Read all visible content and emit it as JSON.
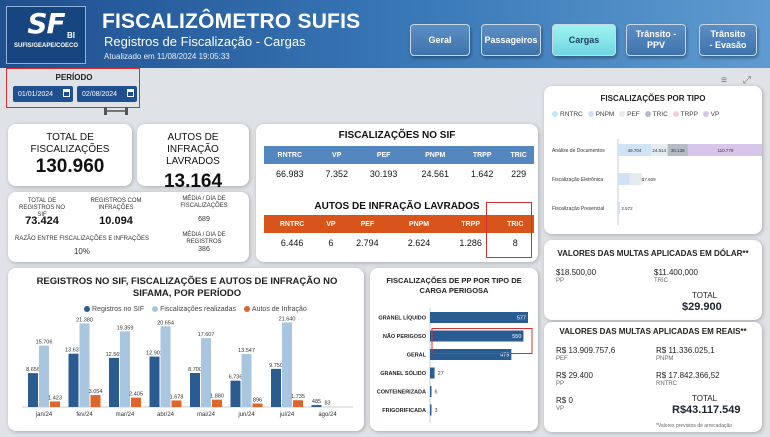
{
  "header": {
    "logo_text": "SF",
    "logo_bi": "BI",
    "logo_sub": "SUFIS/GEAPE/COECO",
    "title": "FISCALIZÔMETRO SUFIS",
    "subtitle": "Registros de Fiscalização - Cargas",
    "updated": "Atualizado em 11/08/2024 19:05:33",
    "nav": [
      "Geral",
      "Passageiros",
      "Cargas",
      "Trânsito - PPV",
      "Trânsito - Evasão"
    ]
  },
  "period": {
    "label": "PERÍODO",
    "start": "01/01/2024",
    "end": "02/08/2024"
  },
  "kpi": {
    "total_label": "TOTAL DE FISCALIZAÇÕES",
    "total_value": "130.960",
    "autos_label": "AUTOS DE INFRAÇÃO LAVRADOS",
    "autos_value": "13.164"
  },
  "stats": {
    "reg_label": "TOTAL DE REGISTROS NO SIF",
    "reg_value": "73.424",
    "inf_label": "REGISTROS COM INFRAÇÕES",
    "inf_value": "10.094",
    "media_fisc_label": "MÉDIA / DIA DE FISCALIZAÇÕES",
    "media_fisc_value": "689",
    "razao_label": "RAZÃO ENTRE FISCALIZAÇÕES E INFRAÇÕES",
    "razao_value": "10%",
    "media_reg_label": "MÉDIA / DIA DE REGISTROS",
    "media_reg_value": "386"
  },
  "sif_table": {
    "title": "FISCALIZAÇÕES NO SIF",
    "headers": [
      "RNTRC",
      "VP",
      "PEF",
      "PNPM",
      "TRPP",
      "TRIC"
    ],
    "values": [
      "66.983",
      "7.352",
      "30.193",
      "24.561",
      "1.642",
      "229"
    ]
  },
  "autos_table": {
    "title": "AUTOS DE INFRAÇÃO LAVRADOS",
    "headers": [
      "RNTRC",
      "VP",
      "PEF",
      "PNPM",
      "TRPP",
      "TRIC"
    ],
    "values": [
      "6.446",
      "6",
      "2.794",
      "2.624",
      "1.286",
      "8"
    ]
  },
  "colors": {
    "dark_blue": "#2a5c92",
    "light_blue": "#a8c6e0",
    "orange": "#e0652a",
    "header_blue": "#1f4f8f"
  },
  "chart_data": [
    {
      "type": "bar",
      "title": "REGISTROS NO SIF, FISCALIZAÇÕES E AUTOS DE INFRAÇÃO NO SIFAMA, POR PERÍODO",
      "categories": [
        "jan/24",
        "fev/24",
        "mar/24",
        "abr/24",
        "mai/24",
        "jun/24",
        "jul/24",
        "ago/24"
      ],
      "series": [
        {
          "name": "Registros no SIF",
          "values": [
            8656,
            13637,
            12565,
            12902,
            8700,
            6736,
            9750,
            485
          ],
          "labels": [
            "8.656",
            "13.637",
            "12.565",
            "12.902",
            "8.700",
            "6.736",
            "9.750",
            "485"
          ]
        },
        {
          "name": "Fiscalizações realizadas",
          "values": [
            15706,
            21380,
            19359,
            20654,
            17607,
            13547,
            21640,
            83
          ],
          "labels": [
            "15.706",
            "21.380",
            "19.359",
            "20.654",
            "17.607",
            "13.547",
            "21.640",
            "83"
          ]
        },
        {
          "name": "Autos de Infração",
          "values": [
            1423,
            3054,
            2405,
            1678,
            1880,
            896,
            1735,
            0
          ],
          "labels": [
            "1.423",
            "3.054",
            "2.405",
            "1.678",
            "1.880",
            "896",
            "1.735",
            ""
          ]
        }
      ],
      "legend": "top",
      "grid": false
    },
    {
      "type": "bar",
      "orientation": "horizontal",
      "title": "FISCALIZAÇÕES DE PP POR TIPO DE CARGA PERIGOSA",
      "categories": [
        "GRANEL LÍQUIDO",
        "NÃO PERIGOSO",
        "GERAL",
        "GRANEL SÓLIDO",
        "CONTEINERIZADA",
        "FRIGORIFICADA"
      ],
      "values": [
        577,
        550,
        479,
        27,
        6,
        3
      ],
      "labels": [
        "577",
        "550",
        "479",
        "27",
        "6",
        "3"
      ]
    },
    {
      "type": "bar",
      "orientation": "horizontal",
      "stacked": true,
      "title": "FISCALIZAÇÕES POR TIPO",
      "categories": [
        "Análise de Documentos",
        "Fiscalização Eletrônica",
        "Fiscalização Presencial"
      ],
      "series": [
        {
          "name": "RNTRC",
          "values": [
            0,
            0,
            0
          ],
          "color": "#bfe9f6"
        },
        {
          "name": "PNPM",
          "values": [
            48704,
            17405,
            2572
          ],
          "labels": [
            "48.704",
            "17.405",
            "2.572"
          ],
          "color": "#cfe3f5"
        },
        {
          "name": "PEF",
          "values": [
            24514,
            17609,
            0
          ],
          "labels": [
            "24.514",
            "17.609",
            ""
          ],
          "color": "#e6ebf0"
        },
        {
          "name": "TRIC",
          "values": [
            30138,
            0,
            0
          ],
          "labels": [
            "30.138",
            "",
            ""
          ],
          "color": "#b5bcc5"
        },
        {
          "name": "TRPP",
          "values": [
            0,
            0,
            0
          ],
          "color": "#efcfd4"
        },
        {
          "name": "VP",
          "values": [
            110779,
            0,
            0
          ],
          "labels": [
            "110.779",
            "",
            ""
          ],
          "color": "#d7c6ea"
        }
      ],
      "legend": "top"
    }
  ],
  "multas_dolar": {
    "title": "VALORES DAS MULTAS APLICADAS EM DÓLAR**",
    "items": [
      {
        "value": "$18.500,00",
        "label": "PP"
      },
      {
        "value": "$11.400,000",
        "label": "TRIC"
      }
    ],
    "total_label": "TOTAL",
    "total_value": "$29.900"
  },
  "multas_reais": {
    "title": "VALORES DAS MULTAS APLICADAS EM REAIS**",
    "items": [
      {
        "value": "R$ 13.909.757,6",
        "label": "PEF"
      },
      {
        "value": "R$ 11.336.025,1",
        "label": "PNPM"
      },
      {
        "value": "R$ 29.400",
        "label": "PP"
      },
      {
        "value": "R$ 17.842.366,52",
        "label": "RNTRC"
      },
      {
        "value": "R$ 0",
        "label": "VP"
      }
    ],
    "total_label": "TOTAL",
    "total_value": "R$43.117.549"
  },
  "footnote": "*Valores previstos de arrecadação"
}
